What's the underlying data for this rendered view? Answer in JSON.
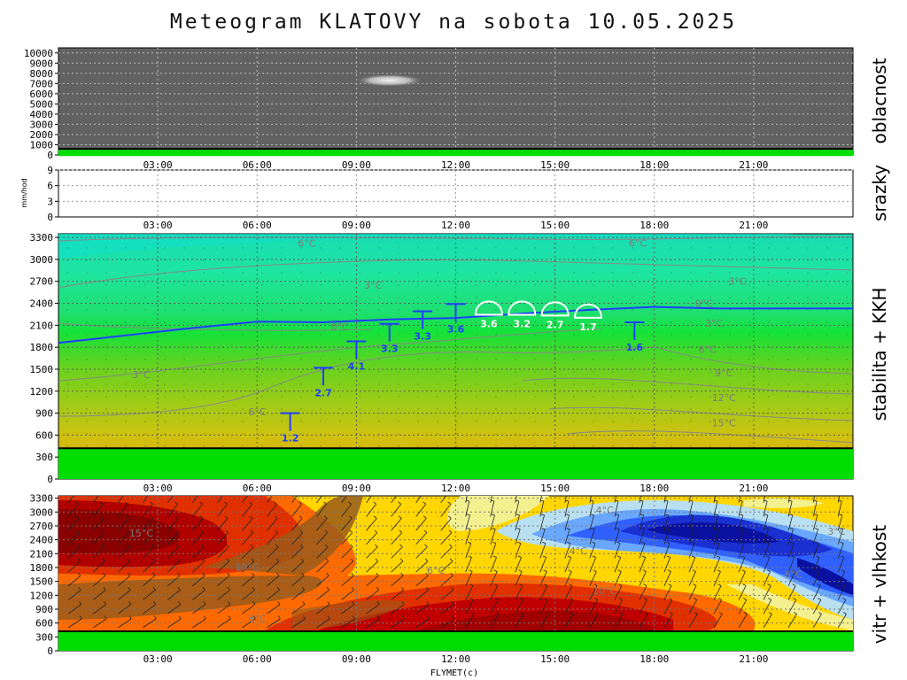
{
  "title": "Meteogram KLATOVY na sobota 10.05.2025",
  "footer_label": "FLYMET(c)",
  "colors": {
    "cloud_bg": "#626262",
    "ground": "#00dd00",
    "kkh_blue": "#1f3fff",
    "freezing_line": "#1f3fff",
    "iso_line": "#7a7a7a"
  },
  "chart_data": [
    {
      "id": "oblacnost",
      "type": "heatmap",
      "panel_label": "oblacnost",
      "x_ticks": [
        "03:00",
        "06:00",
        "09:00",
        "12:00",
        "15:00",
        "18:00",
        "21:00"
      ],
      "x_range_hours": [
        0,
        24
      ],
      "y_ticks": [
        0,
        1000,
        2000,
        3000,
        4000,
        5000,
        6000,
        7000,
        8000,
        9000,
        10000
      ],
      "ylim": [
        0,
        10500
      ],
      "cloud_patches": [
        {
          "hour_center": 10,
          "altitude_m": 7300
        }
      ]
    },
    {
      "id": "srazky",
      "type": "bar",
      "panel_label": "srazky",
      "ylabel": "mm/hod",
      "x_ticks": [
        "03:00",
        "06:00",
        "09:00",
        "12:00",
        "15:00",
        "18:00",
        "21:00"
      ],
      "y_ticks": [
        0,
        3,
        6,
        9
      ],
      "ylim": [
        0,
        9
      ],
      "values": []
    },
    {
      "id": "stabilita",
      "type": "heatmap",
      "panel_label": "stabilita + KKH",
      "x_ticks": [
        "03:00",
        "06:00",
        "09:00",
        "12:00",
        "15:00",
        "18:00",
        "21:00"
      ],
      "y_ticks": [
        0,
        300,
        600,
        900,
        1200,
        1500,
        1800,
        2100,
        2400,
        2700,
        3000,
        3300
      ],
      "ylim": [
        0,
        3350
      ],
      "ground_m": 420,
      "freezing_line": {
        "hours": [
          0,
          2,
          4,
          6,
          8,
          10,
          12,
          14,
          16,
          18,
          20,
          22,
          24
        ],
        "altitude_m": [
          1860,
          1960,
          2060,
          2150,
          2140,
          2180,
          2200,
          2260,
          2310,
          2350,
          2330,
          2330,
          2330
        ]
      },
      "isotherm_labels": [
        {
          "text": "6°C",
          "hour": 7.5,
          "alt_m": 3220
        },
        {
          "text": "6°C",
          "hour": 17.5,
          "alt_m": 3220
        },
        {
          "text": "3°C",
          "hour": 9.5,
          "alt_m": 2650
        },
        {
          "text": "3°C",
          "hour": 20.5,
          "alt_m": 2700
        },
        {
          "text": "0°C",
          "hour": 8.5,
          "alt_m": 2080
        },
        {
          "text": "0°C",
          "hour": 19.5,
          "alt_m": 2400
        },
        {
          "text": "3°C",
          "hour": 2.5,
          "alt_m": 1430
        },
        {
          "text": "3°C",
          "hour": 19.8,
          "alt_m": 2130
        },
        {
          "text": "6°C",
          "hour": 6,
          "alt_m": 920
        },
        {
          "text": "6°C",
          "hour": 19.6,
          "alt_m": 1770
        },
        {
          "text": "9°C",
          "hour": 20.1,
          "alt_m": 1450
        },
        {
          "text": "12°C",
          "hour": 20.1,
          "alt_m": 1110
        },
        {
          "text": "15°C",
          "hour": 20.1,
          "alt_m": 770
        }
      ],
      "kkh": [
        {
          "hour": 7,
          "base_m": 900,
          "label": "1.2",
          "type": "thermal"
        },
        {
          "hour": 8,
          "base_m": 1520,
          "label": "2.7",
          "type": "thermal"
        },
        {
          "hour": 9,
          "base_m": 1880,
          "label": "4.1",
          "type": "thermal"
        },
        {
          "hour": 10,
          "base_m": 2120,
          "label": "3.3",
          "type": "thermal"
        },
        {
          "hour": 11,
          "base_m": 2290,
          "label": "3.3",
          "type": "thermal"
        },
        {
          "hour": 12,
          "base_m": 2390,
          "label": "3.6",
          "type": "thermal"
        },
        {
          "hour": 13,
          "base_m": 2340,
          "label": "3.6",
          "type": "cumulus"
        },
        {
          "hour": 14,
          "base_m": 2340,
          "label": "3.2",
          "type": "cumulus"
        },
        {
          "hour": 15,
          "base_m": 2330,
          "label": "2.7",
          "type": "cumulus"
        },
        {
          "hour": 16,
          "base_m": 2300,
          "label": "1.7",
          "type": "cumulus"
        },
        {
          "hour": 17.4,
          "base_m": 2140,
          "label": "1.6",
          "type": "thermal"
        }
      ]
    },
    {
      "id": "vitr",
      "type": "heatmap",
      "panel_label": "vitr + vlhkost",
      "x_ticks": [
        "03:00",
        "06:00",
        "09:00",
        "12:00",
        "15:00",
        "18:00",
        "21:00"
      ],
      "y_ticks": [
        0,
        300,
        600,
        900,
        1200,
        1500,
        1800,
        2100,
        2400,
        2700,
        3000,
        3300
      ],
      "ylim": [
        0,
        3350
      ],
      "ground_m": 420,
      "isotherm_labels": [
        {
          "text": "15°C",
          "hour": 2.5,
          "alt_m": 2550
        },
        {
          "text": "10°C",
          "hour": 5.7,
          "alt_m": 1810
        },
        {
          "text": "6°C",
          "hour": 11.4,
          "alt_m": 1740
        },
        {
          "text": "4°C",
          "hour": 16.5,
          "alt_m": 3040
        },
        {
          "text": "4°C",
          "hour": 15.7,
          "alt_m": 2160
        },
        {
          "text": "3°C",
          "hour": 23.5,
          "alt_m": 2580
        },
        {
          "text": "6°C",
          "hour": 22.2,
          "alt_m": 1660
        },
        {
          "text": "10°C",
          "hour": 16.5,
          "alt_m": 1300
        },
        {
          "text": "8°C",
          "hour": 6,
          "alt_m": 700
        }
      ]
    }
  ]
}
